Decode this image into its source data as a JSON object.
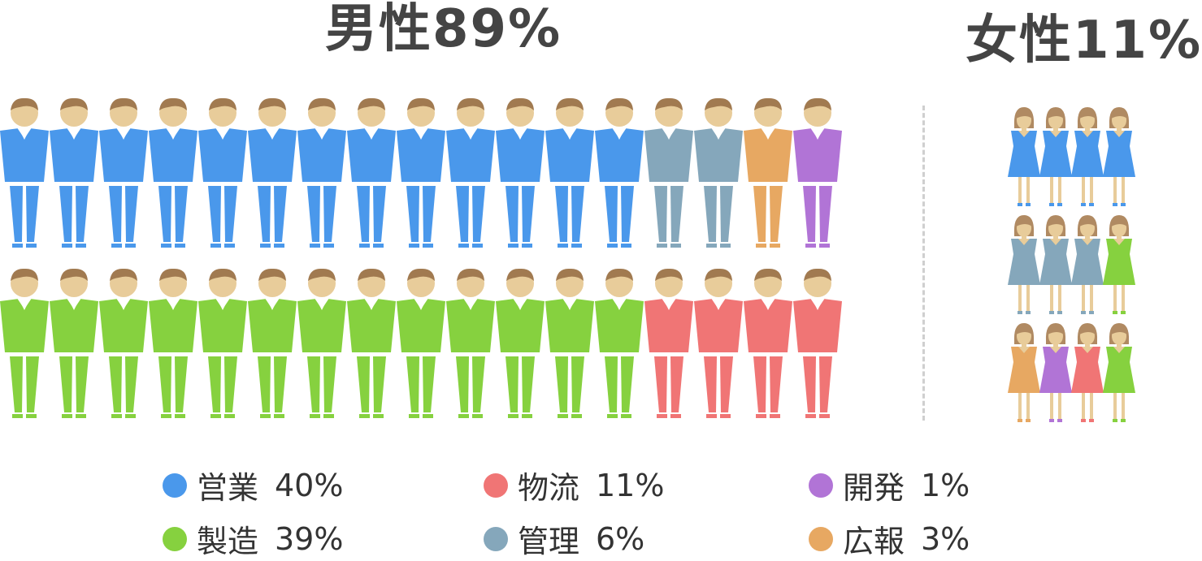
{
  "titles": {
    "male": "男性89%",
    "female": "女性11%"
  },
  "colors": {
    "sales": "#4a98eb",
    "manufacturing": "#86d13f",
    "logistics": "#f07575",
    "management": "#85a7bb",
    "development": "#b174d6",
    "pr": "#e7a862",
    "skin": "#e8cc9a",
    "hair_male": "#a17a50",
    "hair_female": "#b08a62"
  },
  "legend": [
    {
      "key": "sales",
      "name": "営業",
      "value": "40%"
    },
    {
      "key": "logistics",
      "name": "物流",
      "value": "11%"
    },
    {
      "key": "development",
      "name": "開発",
      "value": "1%"
    },
    {
      "key": "manufacturing",
      "name": "製造",
      "value": "39%"
    },
    {
      "key": "management",
      "name": "管理",
      "value": "6%"
    },
    {
      "key": "pr",
      "name": "広報",
      "value": "3%"
    }
  ],
  "chart_data": {
    "type": "pictograph",
    "groups": [
      {
        "name": "男性",
        "share": "89%",
        "rows": [
          [
            "sales",
            "sales",
            "sales",
            "sales",
            "sales",
            "sales",
            "sales",
            "sales",
            "sales",
            "sales",
            "sales",
            "sales",
            "sales",
            "management",
            "management",
            "pr",
            "development"
          ],
          [
            "manufacturing",
            "manufacturing",
            "manufacturing",
            "manufacturing",
            "manufacturing",
            "manufacturing",
            "manufacturing",
            "manufacturing",
            "manufacturing",
            "manufacturing",
            "manufacturing",
            "manufacturing",
            "manufacturing",
            "logistics",
            "logistics",
            "logistics",
            "logistics"
          ]
        ]
      },
      {
        "name": "女性",
        "share": "11%",
        "rows": [
          [
            "sales",
            "sales",
            "sales",
            "sales"
          ],
          [
            "management",
            "management",
            "management",
            "manufacturing"
          ],
          [
            "pr",
            "development",
            "logistics",
            "manufacturing"
          ]
        ]
      }
    ],
    "categories": [
      "営業",
      "製造",
      "物流",
      "管理",
      "開発",
      "広報"
    ],
    "values": [
      40,
      39,
      11,
      6,
      1,
      3
    ]
  }
}
